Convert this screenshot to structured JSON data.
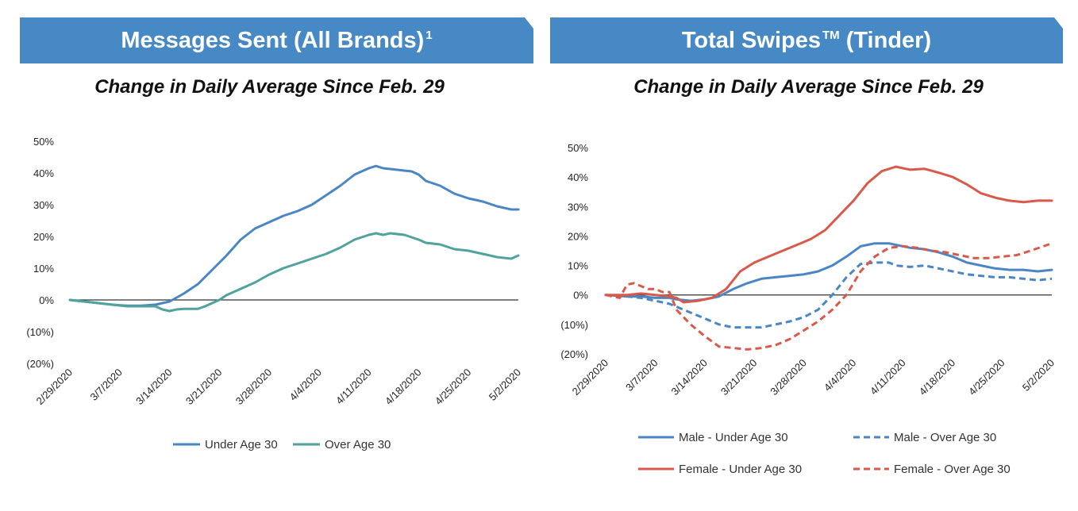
{
  "colors": {
    "banner": "#4689c4",
    "under30": "#4a86c5",
    "over30": "#4fa39c",
    "male": "#4a86c5",
    "female": "#d9594a"
  },
  "panels": [
    {
      "banner_title": "Messages Sent (All Brands)",
      "banner_sup": "1",
      "subtitle": "Change in Daily Average Since Feb. 29"
    },
    {
      "banner_title": "Total Swipes",
      "banner_sup": "TM",
      "banner_suffix": " (Tinder)",
      "subtitle": "Change in Daily Average Since Feb. 29"
    }
  ],
  "chart_data": [
    {
      "type": "line",
      "title": "Change in Daily Average Since Feb. 29",
      "x_ticks": [
        "2/29/2020",
        "3/7/2020",
        "3/14/2020",
        "3/21/2020",
        "3/28/2020",
        "4/4/2020",
        "4/11/2020",
        "4/18/2020",
        "4/25/2020",
        "5/2/2020"
      ],
      "y_ticks": [
        "50%",
        "40%",
        "30%",
        "20%",
        "10%",
        "0%",
        "(10%)",
        "(20%)"
      ],
      "ylim": [
        -20,
        50
      ],
      "x_range_days": [
        0,
        63
      ],
      "legend_position": "bottom",
      "series": [
        {
          "name": "Under Age 30",
          "color_key": "under30",
          "dash": false,
          "points": [
            [
              0,
              0
            ],
            [
              2,
              -0.5
            ],
            [
              4,
              -1
            ],
            [
              6,
              -1.5
            ],
            [
              8,
              -1.8
            ],
            [
              10,
              -1.8
            ],
            [
              12,
              -1.5
            ],
            [
              14,
              -0.5
            ],
            [
              16,
              2
            ],
            [
              18,
              5
            ],
            [
              20,
              9.5
            ],
            [
              22,
              14
            ],
            [
              24,
              19
            ],
            [
              26,
              22.5
            ],
            [
              28,
              24.5
            ],
            [
              30,
              26.5
            ],
            [
              32,
              28
            ],
            [
              34,
              30
            ],
            [
              36,
              33
            ],
            [
              38,
              36
            ],
            [
              40,
              39.5
            ],
            [
              42,
              41.5
            ],
            [
              43,
              42.2
            ],
            [
              44,
              41.5
            ],
            [
              46,
              41
            ],
            [
              48,
              40.5
            ],
            [
              49,
              39.5
            ],
            [
              50,
              37.5
            ],
            [
              52,
              36
            ],
            [
              54,
              33.5
            ],
            [
              56,
              32
            ],
            [
              58,
              31
            ],
            [
              60,
              29.5
            ],
            [
              62,
              28.5
            ],
            [
              63,
              28.5
            ]
          ]
        },
        {
          "name": "Over Age 30",
          "color_key": "over30",
          "dash": false,
          "points": [
            [
              0,
              0
            ],
            [
              2,
              -0.5
            ],
            [
              4,
              -1
            ],
            [
              6,
              -1.5
            ],
            [
              8,
              -2
            ],
            [
              10,
              -2
            ],
            [
              12,
              -2
            ],
            [
              13,
              -3
            ],
            [
              14,
              -3.5
            ],
            [
              15,
              -3
            ],
            [
              16,
              -2.8
            ],
            [
              18,
              -2.8
            ],
            [
              19,
              -2
            ],
            [
              21,
              0
            ],
            [
              22,
              1.5
            ],
            [
              24,
              3.5
            ],
            [
              26,
              5.5
            ],
            [
              28,
              8
            ],
            [
              30,
              10
            ],
            [
              32,
              11.5
            ],
            [
              34,
              13
            ],
            [
              36,
              14.5
            ],
            [
              38,
              16.5
            ],
            [
              40,
              19
            ],
            [
              42,
              20.5
            ],
            [
              43,
              21
            ],
            [
              44,
              20.5
            ],
            [
              45,
              21
            ],
            [
              47,
              20.5
            ],
            [
              49,
              19
            ],
            [
              50,
              18
            ],
            [
              52,
              17.5
            ],
            [
              54,
              16
            ],
            [
              56,
              15.5
            ],
            [
              58,
              14.5
            ],
            [
              60,
              13.5
            ],
            [
              62,
              13
            ],
            [
              63,
              14
            ]
          ]
        }
      ]
    },
    {
      "type": "line",
      "title": "Change in Daily Average Since Feb. 29",
      "x_ticks": [
        "2/29/2020",
        "3/7/2020",
        "3/14/2020",
        "3/21/2020",
        "3/28/2020",
        "4/4/2020",
        "4/11/2020",
        "4/18/2020",
        "4/25/2020",
        "5/2/2020"
      ],
      "y_ticks": [
        "50%",
        "40%",
        "30%",
        "20%",
        "10%",
        "0%",
        "(10%)",
        "(20%)"
      ],
      "ylim": [
        -20,
        50
      ],
      "x_range_days": [
        0,
        63
      ],
      "legend_position": "bottom",
      "series": [
        {
          "name": "Male - Under Age 30",
          "color_key": "male",
          "dash": false,
          "points": [
            [
              0,
              0
            ],
            [
              3,
              -0.5
            ],
            [
              5,
              -0.5
            ],
            [
              7,
              -1
            ],
            [
              9,
              -1
            ],
            [
              10,
              -1.5
            ],
            [
              12,
              -2
            ],
            [
              14,
              -1.5
            ],
            [
              16,
              -0.5
            ],
            [
              18,
              2
            ],
            [
              20,
              4
            ],
            [
              22,
              5.5
            ],
            [
              24,
              6
            ],
            [
              26,
              6.5
            ],
            [
              28,
              7
            ],
            [
              30,
              8
            ],
            [
              32,
              10
            ],
            [
              34,
              13
            ],
            [
              36,
              16.5
            ],
            [
              38,
              17.5
            ],
            [
              40,
              17.5
            ],
            [
              41,
              17
            ],
            [
              43,
              16
            ],
            [
              45,
              15.5
            ],
            [
              47,
              14.5
            ],
            [
              49,
              13
            ],
            [
              51,
              11
            ],
            [
              53,
              10
            ],
            [
              55,
              9
            ],
            [
              57,
              8.5
            ],
            [
              59,
              8.5
            ],
            [
              61,
              8
            ],
            [
              63,
              8.5
            ]
          ]
        },
        {
          "name": "Male - Over Age 30",
          "color_key": "male",
          "dash": true,
          "points": [
            [
              0,
              0
            ],
            [
              3,
              -0.5
            ],
            [
              5,
              -1
            ],
            [
              7,
              -2
            ],
            [
              9,
              -3
            ],
            [
              10,
              -4
            ],
            [
              12,
              -6
            ],
            [
              14,
              -8
            ],
            [
              16,
              -10
            ],
            [
              18,
              -11
            ],
            [
              20,
              -11
            ],
            [
              22,
              -11
            ],
            [
              24,
              -10
            ],
            [
              26,
              -9
            ],
            [
              28,
              -7.5
            ],
            [
              30,
              -5
            ],
            [
              32,
              0
            ],
            [
              34,
              6
            ],
            [
              36,
              10.5
            ],
            [
              38,
              11
            ],
            [
              40,
              11
            ],
            [
              41,
              10
            ],
            [
              43,
              9.5
            ],
            [
              45,
              10
            ],
            [
              47,
              9
            ],
            [
              49,
              8
            ],
            [
              51,
              7
            ],
            [
              53,
              6.5
            ],
            [
              55,
              6
            ],
            [
              57,
              6
            ],
            [
              59,
              5.5
            ],
            [
              61,
              5
            ],
            [
              63,
              5.5
            ]
          ]
        },
        {
          "name": "Female - Under Age 30",
          "color_key": "female",
          "dash": false,
          "points": [
            [
              0,
              0
            ],
            [
              3,
              0
            ],
            [
              5,
              0.5
            ],
            [
              7,
              0
            ],
            [
              9,
              -0.5
            ],
            [
              10,
              -1
            ],
            [
              11,
              -2.5
            ],
            [
              13,
              -2
            ],
            [
              15,
              -1
            ],
            [
              17,
              2
            ],
            [
              19,
              8
            ],
            [
              21,
              11
            ],
            [
              23,
              13
            ],
            [
              25,
              15
            ],
            [
              27,
              17
            ],
            [
              29,
              19
            ],
            [
              31,
              22
            ],
            [
              33,
              27
            ],
            [
              35,
              32
            ],
            [
              37,
              38
            ],
            [
              39,
              42
            ],
            [
              41,
              43.5
            ],
            [
              43,
              42.5
            ],
            [
              45,
              42.8
            ],
            [
              47,
              41.5
            ],
            [
              49,
              40
            ],
            [
              51,
              37.5
            ],
            [
              53,
              34.5
            ],
            [
              55,
              33
            ],
            [
              57,
              32
            ],
            [
              59,
              31.5
            ],
            [
              61,
              32
            ],
            [
              63,
              32
            ]
          ]
        },
        {
          "name": "Female - Over Age 30",
          "color_key": "female",
          "dash": true,
          "points": [
            [
              0,
              0
            ],
            [
              1,
              -0.5
            ],
            [
              2,
              -1
            ],
            [
              3,
              3.5
            ],
            [
              4,
              4
            ],
            [
              5,
              3
            ],
            [
              6,
              2
            ],
            [
              7,
              2
            ],
            [
              8,
              1
            ],
            [
              9,
              1
            ],
            [
              10,
              -5
            ],
            [
              12,
              -10
            ],
            [
              14,
              -14
            ],
            [
              16,
              -17.5
            ],
            [
              18,
              -18
            ],
            [
              20,
              -18.5
            ],
            [
              22,
              -18
            ],
            [
              24,
              -17
            ],
            [
              26,
              -15
            ],
            [
              28,
              -12
            ],
            [
              30,
              -9
            ],
            [
              32,
              -5
            ],
            [
              34,
              0
            ],
            [
              36,
              8
            ],
            [
              38,
              13
            ],
            [
              40,
              16
            ],
            [
              42,
              16.5
            ],
            [
              44,
              16
            ],
            [
              46,
              15
            ],
            [
              48,
              14.5
            ],
            [
              50,
              13.5
            ],
            [
              52,
              12.5
            ],
            [
              54,
              12.5
            ],
            [
              56,
              13
            ],
            [
              58,
              13.5
            ],
            [
              60,
              15
            ],
            [
              63,
              17.5
            ]
          ]
        }
      ]
    }
  ]
}
